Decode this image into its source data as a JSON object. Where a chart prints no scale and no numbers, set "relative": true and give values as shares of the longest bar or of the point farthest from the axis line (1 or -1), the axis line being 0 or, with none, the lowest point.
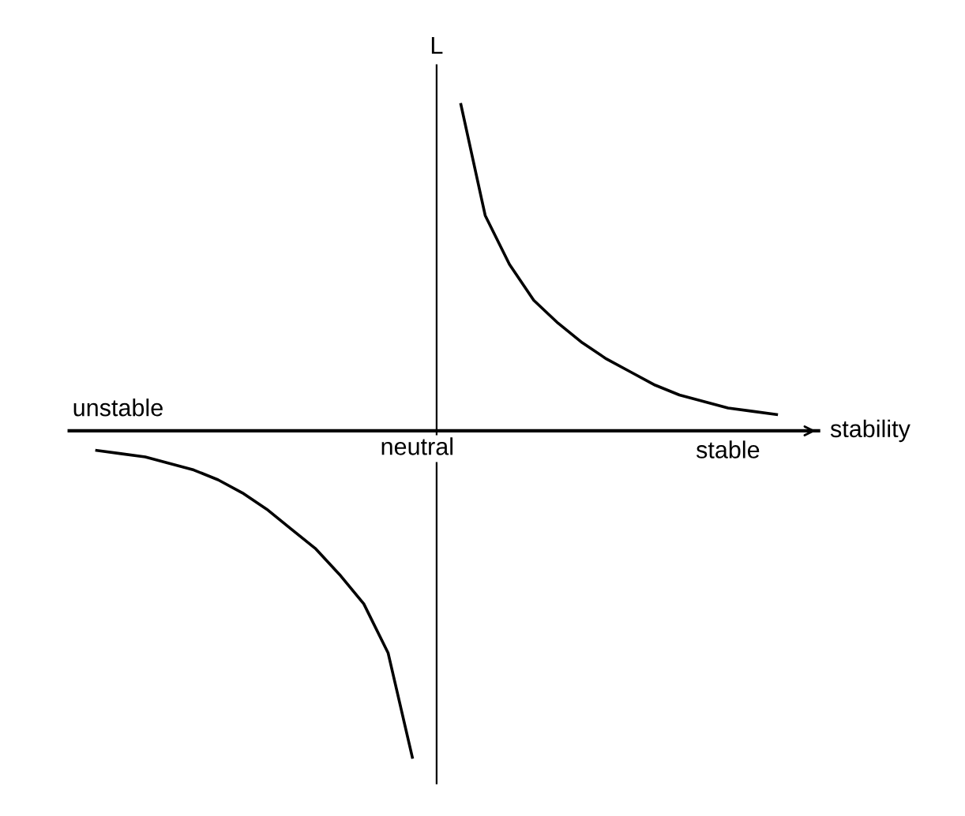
{
  "chart_data": {
    "type": "line",
    "relative": true,
    "xlabel": "stability",
    "ylabel": "L",
    "categories": [
      null,
      null,
      null,
      null,
      null,
      null,
      null,
      null,
      null,
      null,
      null,
      null,
      null,
      null,
      null,
      null,
      null,
      null,
      null,
      null,
      null,
      null,
      null,
      null,
      null,
      null,
      null,
      null,
      null
    ],
    "series": [
      {
        "color": "#000000",
        "values": [
          -0.06,
          -0.07,
          -0.08,
          -0.1,
          -0.12,
          -0.15,
          -0.19,
          -0.24,
          -0.3,
          -0.36,
          -0.44,
          -0.53,
          -0.68,
          -1.0,
          null,
          null,
          null,
          null,
          null,
          null,
          null,
          null,
          null,
          null,
          null,
          null,
          null,
          null,
          null
        ]
      },
      {
        "color": "#000000",
        "values": [
          null,
          null,
          null,
          null,
          null,
          null,
          null,
          null,
          null,
          null,
          null,
          null,
          null,
          null,
          null,
          1.0,
          0.66,
          0.51,
          0.4,
          0.33,
          0.27,
          0.22,
          0.18,
          0.14,
          0.11,
          0.09,
          0.07,
          0.06,
          0.05
        ]
      }
    ],
    "annotations": [
      "unstable",
      "neutral",
      "stable"
    ],
    "legend": false,
    "marker": "none",
    "line_style": "solid"
  }
}
